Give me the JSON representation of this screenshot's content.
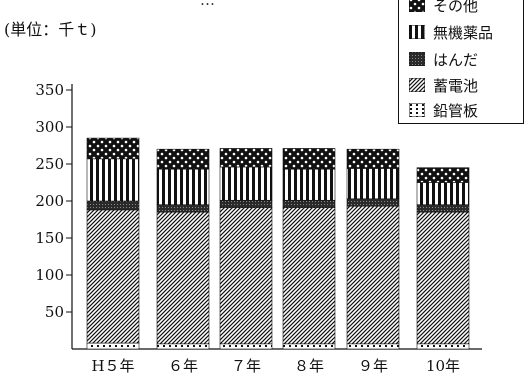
{
  "header": {
    "unit": "(単位：千ｔ)",
    "title_fragment": "…"
  },
  "legend": [
    {
      "key": "other",
      "label": "その他"
    },
    {
      "key": "chem",
      "label": "無機薬品"
    },
    {
      "key": "solder",
      "label": "はんだ"
    },
    {
      "key": "batt",
      "label": "蓄電池"
    },
    {
      "key": "pipe",
      "label": "鉛管板"
    }
  ],
  "chart_data": {
    "type": "bar",
    "stacked": true,
    "categories": [
      "H５年",
      "６年",
      "７年",
      "８年",
      "９年",
      "10年"
    ],
    "series": [
      {
        "key": "pipe",
        "name": "鉛管板",
        "values": [
          8,
          7,
          7,
          7,
          7,
          7
        ]
      },
      {
        "key": "batt",
        "name": "蓄電池",
        "values": [
          180,
          178,
          184,
          184,
          186,
          178
        ]
      },
      {
        "key": "solder",
        "name": "はんだ",
        "values": [
          12,
          10,
          10,
          10,
          10,
          10
        ]
      },
      {
        "key": "chem",
        "name": "無機薬品",
        "values": [
          57,
          48,
          45,
          42,
          41,
          30
        ]
      },
      {
        "key": "other",
        "name": "その他",
        "values": [
          28,
          27,
          25,
          28,
          26,
          20
        ]
      }
    ],
    "ylim": [
      0,
      350
    ],
    "yticks": [
      50,
      100,
      150,
      200,
      250,
      300,
      350
    ],
    "grid": false,
    "legend_position": "top-right"
  }
}
